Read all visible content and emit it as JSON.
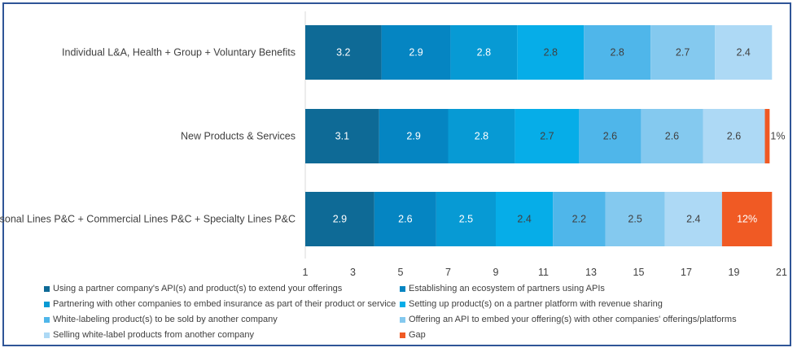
{
  "chart_data": {
    "type": "bar",
    "orientation": "horizontal",
    "stacked": true,
    "categories": [
      "Individual L&A, Health + Group + Voluntary Benefits",
      "New Products & Services",
      "Personal Lines P&C + Commercial Lines P&C + Specialty Lines P&C"
    ],
    "series": [
      {
        "name": "Using a partner company's API(s) and product(s) to extend your offerings",
        "values": [
          3.2,
          3.1,
          2.9
        ],
        "labels": [
          "3.2",
          "3.1",
          "2.9"
        ],
        "color": "#0e6a96",
        "label_color": "#ffffff"
      },
      {
        "name": "Establishing an ecosystem of partners using APIs",
        "values": [
          2.9,
          2.9,
          2.6
        ],
        "labels": [
          "2.9",
          "2.9",
          "2.6"
        ],
        "color": "#0585c2",
        "label_color": "#ffffff"
      },
      {
        "name": "Partnering with other companies to embed insurance as part of their product or service",
        "values": [
          2.8,
          2.8,
          2.5
        ],
        "labels": [
          "2.8",
          "2.8",
          "2.5"
        ],
        "color": "#079ad4",
        "label_color": "#ffffff"
      },
      {
        "name": "Setting up product(s) on a partner platform with revenue sharing",
        "values": [
          2.8,
          2.7,
          2.4
        ],
        "labels": [
          "2.8",
          "2.7",
          "2.4"
        ],
        "color": "#06ade8",
        "label_color": "#404040"
      },
      {
        "name": "White-labeling product(s) to be sold by another company",
        "values": [
          2.8,
          2.6,
          2.2
        ],
        "labels": [
          "2.8",
          "2.6",
          "2.2"
        ],
        "color": "#4fb6ea",
        "label_color": "#404040"
      },
      {
        "name": "Offering an API to embed your offering(s) with other companies' offerings/platforms",
        "values": [
          2.7,
          2.6,
          2.5
        ],
        "labels": [
          "2.7",
          "2.6",
          "2.5"
        ],
        "color": "#84c9ef",
        "label_color": "#404040"
      },
      {
        "name": "Selling white-label products from another company",
        "values": [
          2.4,
          2.6,
          2.4
        ],
        "labels": [
          "2.4",
          "2.6",
          "2.4"
        ],
        "color": "#add9f5",
        "label_color": "#404040"
      },
      {
        "name": "Gap",
        "values": [
          0,
          0.2,
          2.1
        ],
        "labels": [
          "",
          "1%",
          "12%"
        ],
        "color": "#f05a24",
        "label_color": "#ffffff"
      }
    ],
    "x_axis": {
      "min": 1,
      "max": 21,
      "ticks": [
        1,
        3,
        5,
        7,
        9,
        11,
        13,
        15,
        17,
        19,
        21
      ]
    },
    "grid": false,
    "legend_position": "bottom"
  }
}
